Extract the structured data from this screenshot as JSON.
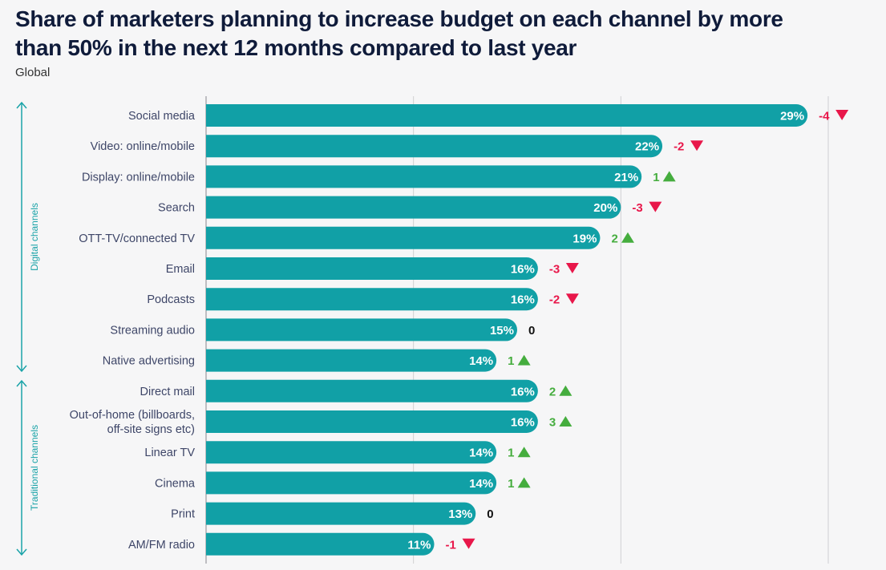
{
  "title": "Share of marketers planning to increase budget on each channel by more than 50% in the next 12 months compared to last year",
  "subtitle": "Global",
  "colors": {
    "bar": "#11a0a6",
    "up": "#45ad3e",
    "down": "#e8174a",
    "neutral": "#111111",
    "group": "#1aa3a8",
    "grid": "#cfcfd3",
    "label": "#3e4668"
  },
  "chart_data": {
    "type": "bar",
    "orientation": "horizontal",
    "title": "Share of marketers planning to increase budget on each channel by more than 50% in the next 12 months compared to last year",
    "subtitle": "Global",
    "xlabel": "",
    "ylabel": "",
    "xlim": [
      0,
      30
    ],
    "grid": true,
    "gridlines": [
      10,
      20,
      30
    ],
    "value_suffix": "%",
    "groups": [
      {
        "name": "Digital channels",
        "categories": [
          "Social media",
          "Video: online/mobile",
          "Display: online/mobile",
          "Search",
          "OTT-TV/connected TV",
          "Email",
          "Podcasts",
          "Streaming audio",
          "Native advertising"
        ]
      },
      {
        "name": "Traditional channels",
        "categories": [
          "Direct mail",
          "Out-of-home (billboards, off-site signs etc)",
          "Linear TV",
          "Cinema",
          "Print",
          "AM/FM radio"
        ]
      }
    ],
    "categories": [
      [
        "Social media"
      ],
      [
        "Video: online/mobile"
      ],
      [
        "Display: online/mobile"
      ],
      [
        "Search"
      ],
      [
        "OTT-TV/connected TV"
      ],
      [
        "Email"
      ],
      [
        "Podcasts"
      ],
      [
        "Streaming audio"
      ],
      [
        "Native advertising"
      ],
      [
        "Direct mail"
      ],
      [
        "Out-of-home (billboards,",
        "off-site signs etc)"
      ],
      [
        "Linear TV"
      ],
      [
        "Cinema"
      ],
      [
        "Print"
      ],
      [
        "AM/FM radio"
      ]
    ],
    "values": [
      29,
      22,
      21,
      20,
      19,
      16,
      16,
      15,
      14,
      16,
      16,
      14,
      14,
      13,
      11
    ],
    "change_vs_last_year": [
      -4,
      -2,
      1,
      -3,
      2,
      -3,
      -2,
      0,
      1,
      2,
      3,
      1,
      1,
      0,
      -1
    ]
  }
}
